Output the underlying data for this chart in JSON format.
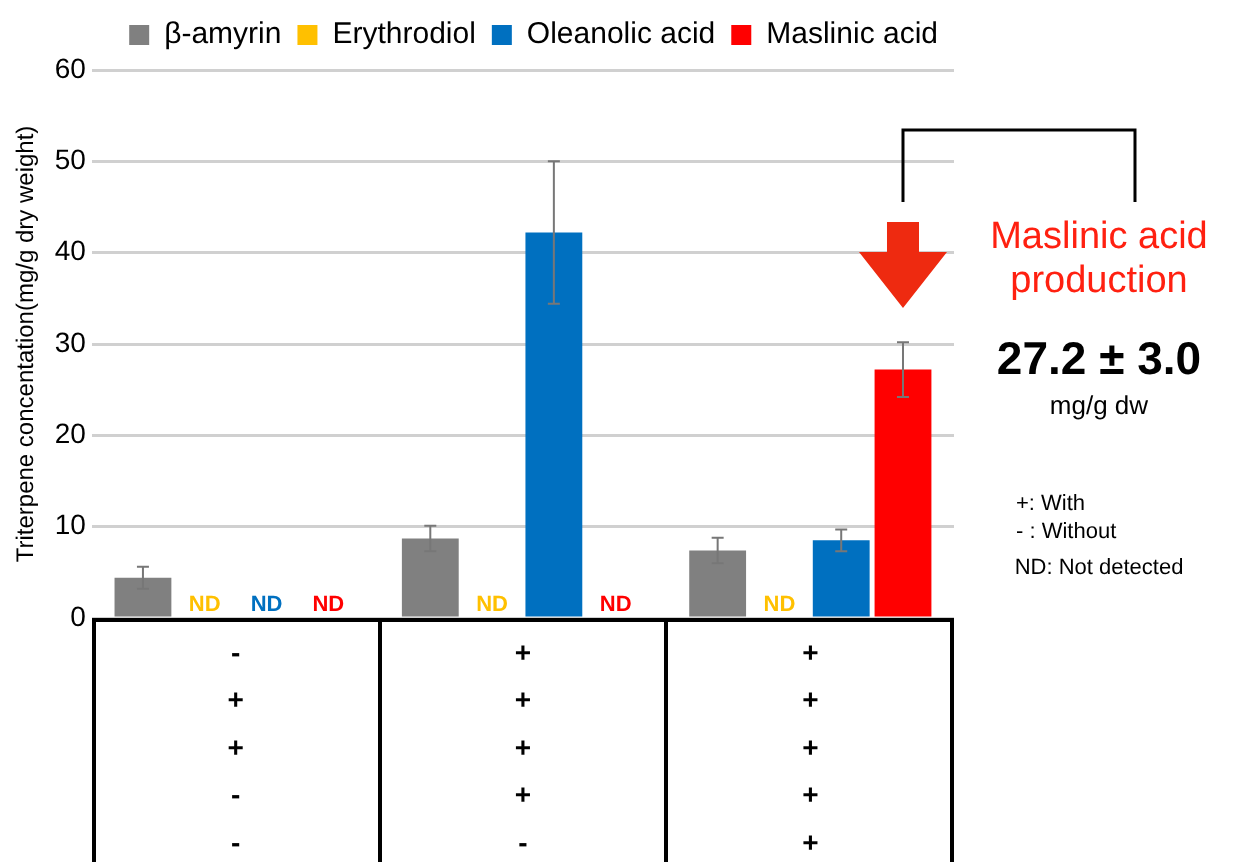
{
  "chart_data": {
    "type": "bar",
    "ylabel": "Triterpene concentation(mg/g dry weight)",
    "categories": [
      "-\n+\n+\n-\n-",
      "+\n+\n+\n+\n-",
      "+\n+\n+\n+\n+"
    ],
    "series": [
      {
        "name": "β-amyrin",
        "color": "#808080",
        "values": [
          4.4,
          8.7,
          7.4
        ],
        "errors": [
          1.2,
          1.4,
          1.4
        ]
      },
      {
        "name": "Erythrodiol",
        "color": "#ffc000",
        "values": [
          null,
          null,
          null
        ],
        "value_labels": [
          "ND",
          "ND",
          "ND"
        ]
      },
      {
        "name": "Oleanolic acid",
        "color": "#0070c0",
        "values": [
          null,
          42.2,
          8.5
        ],
        "errors": [
          null,
          7.8,
          1.2
        ],
        "value_labels": [
          "ND",
          null,
          null
        ]
      },
      {
        "name": "Maslinic acid",
        "color": "#ff0000",
        "values": [
          null,
          null,
          27.2
        ],
        "errors": [
          null,
          null,
          3.0
        ],
        "value_labels": [
          "ND",
          "ND",
          null
        ]
      }
    ],
    "ylim": [
      0,
      60
    ],
    "yticks": [
      0,
      10,
      20,
      30,
      40,
      50,
      60
    ],
    "grid": "y",
    "legend": "top right",
    "annotations": [
      "Maslinic acid production",
      "27.2 ± 3.0",
      "mg/g dw",
      "+: With",
      "- : Without",
      "ND: Not detected"
    ]
  }
}
